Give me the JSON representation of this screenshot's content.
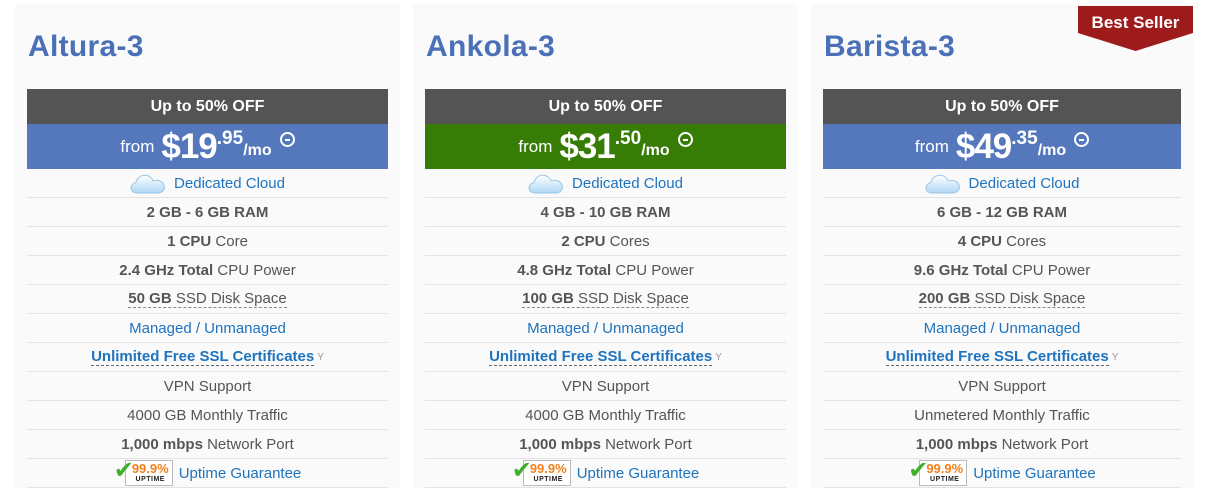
{
  "colors": {
    "plan_title": "#4a70b8",
    "discount_bar": "#545454",
    "price_bar_blue": "#5578bd",
    "price_bar_green": "#377d05",
    "link": "#1e73be",
    "body_text": "#555555",
    "ribbon_red": "#9e1b1b",
    "uptime_orange": "#f28018",
    "check_green": "#3faf2a",
    "card_background": "#fafafa"
  },
  "ribbon": {
    "label": "Best Seller",
    "color": "#9e1b1b"
  },
  "uptime_badge": {
    "percent": "99.9%",
    "label": "UPTIME"
  },
  "icons": {
    "cloud": "cloud-icon",
    "price_info": "circled-minus-icon",
    "check": "checkmark-icon"
  },
  "plans": [
    {
      "name": "Altura-3",
      "discount_label": "Up to 50% OFF",
      "discount_bg": "#545454",
      "price": {
        "prefix": "from",
        "amount": "$19",
        "cents": ".95",
        "period": "/mo"
      },
      "price_bg": "#5578bd",
      "best_seller": false,
      "features": [
        {
          "type": "cloud",
          "text": "Dedicated Cloud"
        },
        {
          "type": "bold",
          "bold": "2 GB - 6 GB RAM",
          "text": ""
        },
        {
          "type": "mixed",
          "bold": "1 CPU",
          "text": " Core"
        },
        {
          "type": "mixed",
          "bold": "2.4 GHz Total",
          "text": " CPU Power"
        },
        {
          "type": "dashed",
          "bold": "50 GB",
          "text": " SSD Disk Space"
        },
        {
          "type": "link",
          "text": "Managed / Unmanaged"
        },
        {
          "type": "ssl",
          "text": "Unlimited Free SSL Certificates",
          "sup": "Y"
        },
        {
          "type": "plain",
          "text": "VPN Support"
        },
        {
          "type": "plain",
          "text": "4000 GB Monthly Traffic"
        },
        {
          "type": "mixed",
          "bold": "1,000 mbps",
          "text": " Network Port"
        },
        {
          "type": "uptime",
          "text": "Uptime Guarantee"
        }
      ]
    },
    {
      "name": "Ankola-3",
      "discount_label": "Up to 50% OFF",
      "discount_bg": "#545454",
      "price": {
        "prefix": "from",
        "amount": "$31",
        "cents": ".50",
        "period": "/mo"
      },
      "price_bg": "#377d05",
      "best_seller": false,
      "features": [
        {
          "type": "cloud",
          "text": "Dedicated Cloud"
        },
        {
          "type": "bold",
          "bold": "4 GB - 10 GB RAM",
          "text": ""
        },
        {
          "type": "mixed",
          "bold": "2 CPU",
          "text": " Cores"
        },
        {
          "type": "mixed",
          "bold": "4.8 GHz Total",
          "text": " CPU Power"
        },
        {
          "type": "dashed",
          "bold": "100 GB",
          "text": " SSD Disk Space"
        },
        {
          "type": "link",
          "text": "Managed / Unmanaged"
        },
        {
          "type": "ssl",
          "text": "Unlimited Free SSL Certificates",
          "sup": "Y"
        },
        {
          "type": "plain",
          "text": "VPN Support"
        },
        {
          "type": "plain",
          "text": "4000 GB Monthly Traffic"
        },
        {
          "type": "mixed",
          "bold": "1,000 mbps",
          "text": " Network Port"
        },
        {
          "type": "uptime",
          "text": "Uptime Guarantee"
        }
      ]
    },
    {
      "name": "Barista-3",
      "discount_label": "Up to 50% OFF",
      "discount_bg": "#545454",
      "price": {
        "prefix": "from",
        "amount": "$49",
        "cents": ".35",
        "period": "/mo"
      },
      "price_bg": "#5578bd",
      "best_seller": true,
      "features": [
        {
          "type": "cloud",
          "text": "Dedicated Cloud"
        },
        {
          "type": "bold",
          "bold": "6 GB - 12 GB RAM",
          "text": ""
        },
        {
          "type": "mixed",
          "bold": "4 CPU",
          "text": " Cores"
        },
        {
          "type": "mixed",
          "bold": "9.6 GHz Total",
          "text": " CPU Power"
        },
        {
          "type": "dashed",
          "bold": "200 GB",
          "text": " SSD Disk Space"
        },
        {
          "type": "link",
          "text": "Managed / Unmanaged"
        },
        {
          "type": "ssl",
          "text": "Unlimited Free SSL Certificates",
          "sup": "Y"
        },
        {
          "type": "plain",
          "text": "VPN Support"
        },
        {
          "type": "plain",
          "text": "Unmetered Monthly Traffic"
        },
        {
          "type": "mixed",
          "bold": "1,000 mbps",
          "text": " Network Port"
        },
        {
          "type": "uptime",
          "text": "Uptime Guarantee"
        }
      ]
    }
  ]
}
